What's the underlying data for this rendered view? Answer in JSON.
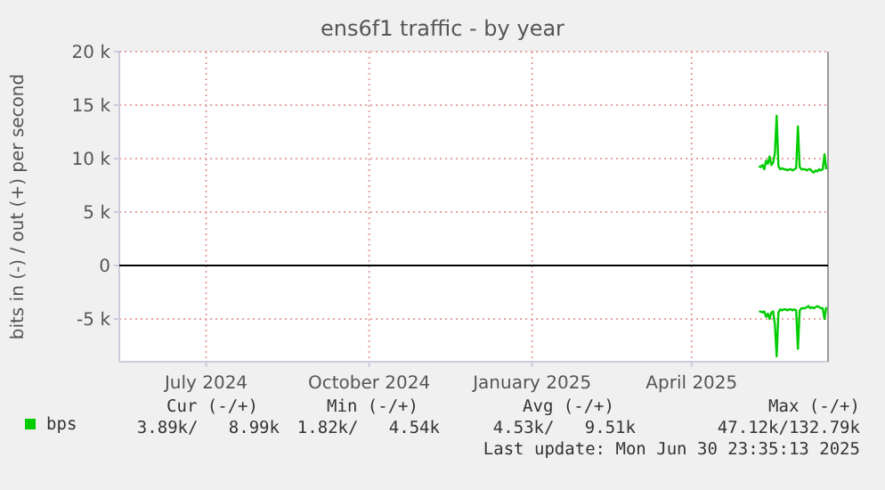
{
  "chart_data": {
    "type": "line",
    "title": "ens6f1 traffic - by year",
    "ylabel": "bits in (-) / out (+) per second",
    "x": [
      "2025-05-23",
      "2025-05-24",
      "2025-05-25",
      "2025-05-26",
      "2025-05-27",
      "2025-05-28",
      "2025-05-29",
      "2025-05-30",
      "2025-05-31",
      "2025-06-01",
      "2025-06-02",
      "2025-06-03",
      "2025-06-04",
      "2025-06-05",
      "2025-06-06",
      "2025-06-07",
      "2025-06-08",
      "2025-06-09",
      "2025-06-10",
      "2025-06-11",
      "2025-06-12",
      "2025-06-13",
      "2025-06-14",
      "2025-06-15",
      "2025-06-16",
      "2025-06-17",
      "2025-06-18",
      "2025-06-19",
      "2025-06-20",
      "2025-06-21",
      "2025-06-22",
      "2025-06-23",
      "2025-06-24",
      "2025-06-25",
      "2025-06-26",
      "2025-06-27",
      "2025-06-28",
      "2025-06-29",
      "2025-06-30"
    ],
    "series": [
      {
        "name": "bps",
        "color": "#00cc00",
        "values": [
          9300,
          9200,
          9400,
          9000,
          9800,
          9500,
          10200,
          9400,
          9600,
          10500,
          14000,
          9300,
          9000,
          9100,
          9000,
          9000,
          8900,
          9000,
          9000,
          8900,
          9000,
          9100,
          13000,
          9200,
          9000,
          9000,
          9000,
          8900,
          9000,
          9000,
          8800,
          8700,
          8900,
          8800,
          9000,
          8900,
          9000,
          10400,
          9000
        ]
      },
      {
        "color": "#00cc00",
        "values": [
          -4300,
          -4300,
          -4400,
          -4300,
          -4800,
          -4500,
          -5000,
          -4400,
          -4300,
          -5500,
          -8500,
          -4400,
          -4100,
          -4200,
          -4100,
          -4100,
          -4200,
          -4100,
          -4100,
          -4200,
          -4100,
          -4200,
          -7800,
          -4200,
          -4000,
          -4000,
          -4000,
          -3900,
          -3800,
          -4000,
          -3900,
          -4000,
          -3900,
          -3800,
          -3900,
          -4000,
          -4000,
          -5000,
          -3900
        ]
      }
    ],
    "xlim": [
      "2024-05-27",
      "2025-06-30T23:35"
    ],
    "xticks": [
      {
        "value": "2024-07-15",
        "label": "July 2024"
      },
      {
        "value": "2024-10-15",
        "label": "October 2024"
      },
      {
        "value": "2025-01-15",
        "label": "January 2025"
      },
      {
        "value": "2025-04-15",
        "label": "April 2025"
      }
    ],
    "ylim": [
      -9000,
      20000
    ],
    "yticks": [
      {
        "value": -5000,
        "label": "-5 k"
      },
      0,
      {
        "value": 5000,
        "label": "5 k"
      },
      {
        "value": 10000,
        "label": "10 k"
      },
      {
        "value": 15000,
        "label": "15 k"
      },
      {
        "value": 20000,
        "label": "20 k"
      }
    ],
    "grid": true,
    "legend": "bottom left",
    "line_style": "solid",
    "ref_lines": [
      {
        "axis": "y",
        "value": 0,
        "color": "#000000"
      }
    ],
    "annotations": [
      "Cur (-/+)",
      "Min (-/+)",
      "Avg (-/+)",
      "Max (-/+)",
      "3.89k/   8.99k",
      "1.82k/   4.54k",
      "4.53k/   9.51k",
      "47.12k/132.79k",
      "Last update: Mon Jun 30 23:35:13 2025"
    ]
  }
}
